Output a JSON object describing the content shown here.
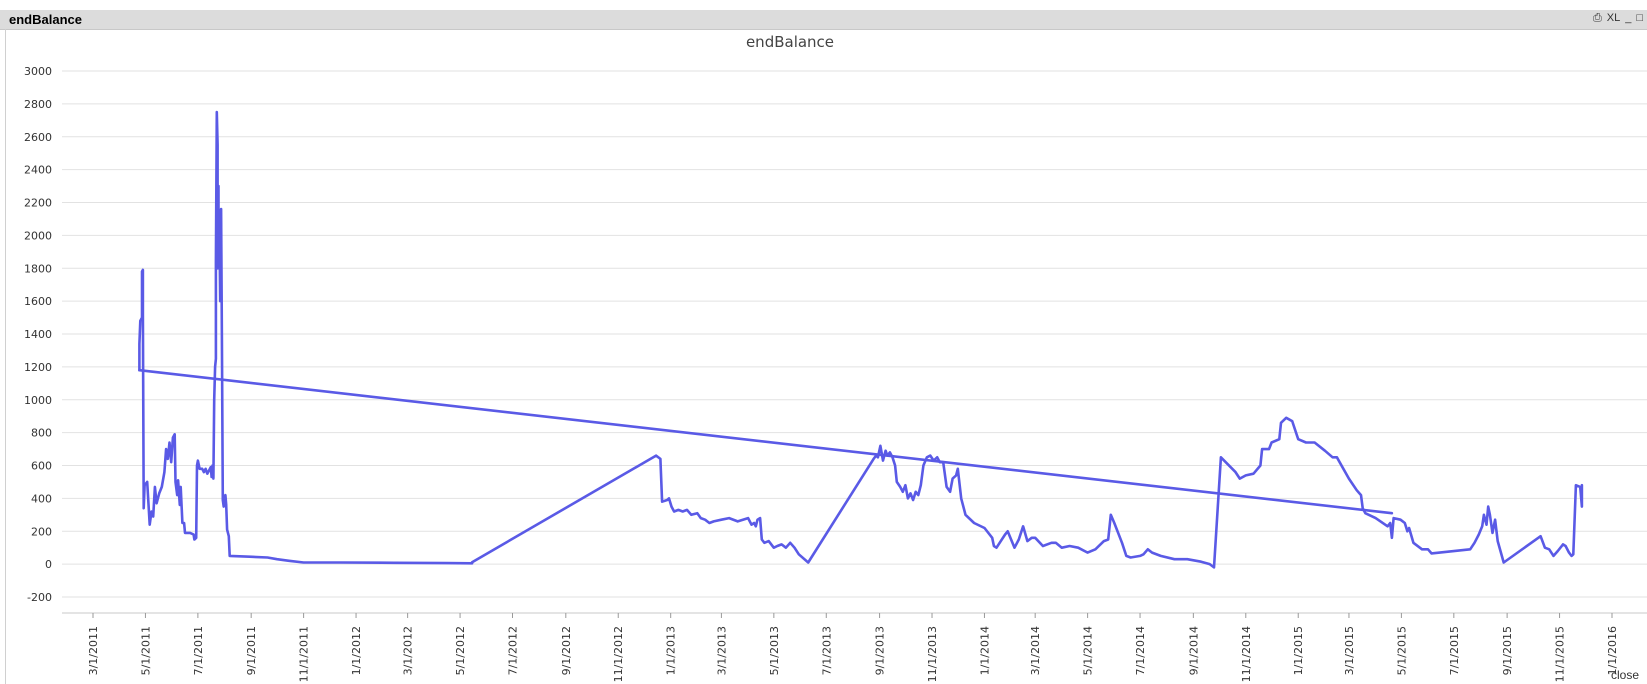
{
  "window": {
    "title": "endBalance",
    "controls": [
      "XL",
      "_",
      "□"
    ],
    "close_label": "close"
  },
  "chart_data": {
    "type": "line",
    "title": "endBalance",
    "xlabel": "",
    "ylabel": "",
    "ylim": [
      -200,
      3000
    ],
    "yticks": [
      -200,
      0,
      200,
      400,
      600,
      800,
      1000,
      1200,
      1400,
      1600,
      1800,
      2000,
      2200,
      2400,
      2600,
      2800,
      3000
    ],
    "xticks": [
      "3/1/2011",
      "5/1/2011",
      "7/1/2011",
      "9/1/2011",
      "11/1/2011",
      "1/1/2012",
      "3/1/2012",
      "5/1/2012",
      "7/1/2012",
      "9/1/2012",
      "11/1/2012",
      "1/1/2013",
      "3/1/2013",
      "5/1/2013",
      "7/1/2013",
      "9/1/2013",
      "11/1/2013",
      "1/1/2014",
      "3/1/2014",
      "5/1/2014",
      "7/1/2014",
      "9/1/2014",
      "11/1/2014",
      "1/1/2015",
      "3/1/2015",
      "5/1/2015",
      "7/1/2015",
      "9/1/2015",
      "11/1/2015",
      "1/1/2016"
    ],
    "grid": true,
    "color": "#5a5ae6",
    "series": [
      {
        "points": [
          [
            "4/24/2011",
            1180
          ],
          [
            "4/24/2011",
            1340
          ],
          [
            "4/25/2011",
            1480
          ],
          [
            "4/27/2011",
            1500
          ],
          [
            "4/27/2011",
            1780
          ],
          [
            "4/28/2011",
            1790
          ],
          [
            "4/28/2011",
            1520
          ],
          [
            "4/29/2011",
            340
          ],
          [
            "4/30/2011",
            480
          ],
          [
            "5/3/2011",
            500
          ],
          [
            "5/6/2011",
            240
          ],
          [
            "5/8/2011",
            320
          ],
          [
            "5/10/2011",
            290
          ],
          [
            "5/12/2011",
            470
          ],
          [
            "5/14/2011",
            370
          ],
          [
            "5/17/2011",
            430
          ],
          [
            "5/20/2011",
            470
          ],
          [
            "5/23/2011",
            560
          ],
          [
            "5/25/2011",
            700
          ],
          [
            "5/27/2011",
            640
          ],
          [
            "5/29/2011",
            740
          ],
          [
            "5/31/2011",
            620
          ],
          [
            "6/2/2011",
            770
          ],
          [
            "6/4/2011",
            790
          ],
          [
            "6/5/2011",
            500
          ],
          [
            "6/7/2011",
            420
          ],
          [
            "6/8/2011",
            510
          ],
          [
            "6/10/2011",
            360
          ],
          [
            "6/11/2011",
            470
          ],
          [
            "6/13/2011",
            250
          ],
          [
            "6/15/2011",
            250
          ],
          [
            "6/16/2011",
            190
          ],
          [
            "6/22/2011",
            190
          ],
          [
            "6/26/2011",
            180
          ],
          [
            "6/27/2011",
            150
          ],
          [
            "6/29/2011",
            160
          ],
          [
            "6/30/2011",
            600
          ],
          [
            "7/1/2011",
            630
          ],
          [
            "7/3/2011",
            580
          ],
          [
            "7/6/2011",
            580
          ],
          [
            "7/8/2011",
            560
          ],
          [
            "7/10/2011",
            580
          ],
          [
            "7/12/2011",
            550
          ],
          [
            "7/14/2011",
            570
          ],
          [
            "7/16/2011",
            590
          ],
          [
            "7/17/2011",
            530
          ],
          [
            "7/18/2011",
            600
          ],
          [
            "7/19/2011",
            520
          ],
          [
            "7/20/2011",
            1000
          ],
          [
            "7/21/2011",
            1200
          ],
          [
            "7/22/2011",
            1250
          ],
          [
            "7/22/2011",
            1840
          ],
          [
            "7/23/2011",
            2750
          ],
          [
            "7/24/2011",
            2550
          ],
          [
            "7/24/2011",
            1800
          ],
          [
            "7/25/2011",
            2300
          ],
          [
            "7/25/2011",
            1900
          ],
          [
            "7/26/2011",
            2050
          ],
          [
            "7/27/2011",
            1600
          ],
          [
            "7/28/2011",
            2160
          ],
          [
            "7/29/2011",
            1380
          ],
          [
            "7/30/2011",
            390
          ],
          [
            "7/31/2011",
            350
          ],
          [
            "8/2/2011",
            420
          ],
          [
            "8/3/2011",
            360
          ],
          [
            "8/4/2011",
            210
          ],
          [
            "8/6/2011",
            170
          ],
          [
            "8/7/2011",
            50
          ],
          [
            "8/30/2011",
            45
          ],
          [
            "9/20/2011",
            40
          ],
          [
            "10/1/2011",
            30
          ],
          [
            "10/15/2011",
            20
          ],
          [
            "11/1/2011",
            10
          ],
          [
            "12/15/2011",
            10
          ],
          [
            "2/15/2012",
            8
          ],
          [
            "4/15/2012",
            6
          ],
          [
            "5/15/2012",
            5
          ],
          [
            "5/15/2012",
            12
          ],
          [
            "12/15/2012",
            660
          ],
          [
            "12/20/2012",
            640
          ],
          [
            "12/22/2012",
            380
          ],
          [
            "12/28/2012",
            390
          ],
          [
            "12/30/2012",
            400
          ],
          [
            "1/2/2013",
            350
          ],
          [
            "1/5/2013",
            320
          ],
          [
            "1/10/2013",
            330
          ],
          [
            "1/15/2013",
            320
          ],
          [
            "1/20/2013",
            330
          ],
          [
            "1/25/2013",
            300
          ],
          [
            "2/1/2013",
            310
          ],
          [
            "2/5/2013",
            280
          ],
          [
            "2/10/2013",
            270
          ],
          [
            "2/15/2013",
            250
          ],
          [
            "2/20/2013",
            260
          ],
          [
            "3/1/2013",
            270
          ],
          [
            "3/10/2013",
            280
          ],
          [
            "3/20/2013",
            260
          ],
          [
            "4/1/2013",
            280
          ],
          [
            "4/5/2013",
            240
          ],
          [
            "4/8/2013",
            250
          ],
          [
            "4/10/2013",
            230
          ],
          [
            "4/12/2013",
            270
          ],
          [
            "4/15/2013",
            280
          ],
          [
            "4/17/2013",
            150
          ],
          [
            "4/20/2013",
            130
          ],
          [
            "4/25/2013",
            140
          ],
          [
            "5/1/2013",
            100
          ],
          [
            "5/5/2013",
            110
          ],
          [
            "5/10/2013",
            120
          ],
          [
            "5/15/2013",
            100
          ],
          [
            "5/20/2013",
            130
          ],
          [
            "5/25/2013",
            100
          ],
          [
            "5/30/2013",
            60
          ],
          [
            "6/10/2013",
            10
          ],
          [
            "8/25/2013",
            640
          ],
          [
            "8/28/2013",
            660
          ],
          [
            "8/30/2013",
            650
          ],
          [
            "9/2/2013",
            720
          ],
          [
            "9/5/2013",
            630
          ],
          [
            "9/8/2013",
            690
          ],
          [
            "9/10/2013",
            660
          ],
          [
            "9/13/2013",
            680
          ],
          [
            "9/16/2013",
            650
          ],
          [
            "9/19/2013",
            600
          ],
          [
            "9/21/2013",
            500
          ],
          [
            "9/25/2013",
            470
          ],
          [
            "9/28/2013",
            440
          ],
          [
            "10/1/2013",
            480
          ],
          [
            "10/4/2013",
            400
          ],
          [
            "10/7/2013",
            430
          ],
          [
            "10/10/2013",
            390
          ],
          [
            "10/13/2013",
            440
          ],
          [
            "10/16/2013",
            420
          ],
          [
            "10/19/2013",
            480
          ],
          [
            "10/22/2013",
            600
          ],
          [
            "10/26/2013",
            650
          ],
          [
            "10/30/2013",
            660
          ],
          [
            "11/3/2013",
            630
          ],
          [
            "11/7/2013",
            650
          ],
          [
            "11/10/2013",
            620
          ],
          [
            "11/14/2013",
            620
          ],
          [
            "11/18/2013",
            470
          ],
          [
            "11/22/2013",
            440
          ],
          [
            "11/25/2013",
            520
          ],
          [
            "11/29/2013",
            540
          ],
          [
            "12/1/2013",
            580
          ],
          [
            "12/5/2013",
            400
          ],
          [
            "12/10/2013",
            300
          ],
          [
            "12/20/2013",
            250
          ],
          [
            "1/1/2014",
            220
          ],
          [
            "1/10/2014",
            160
          ],
          [
            "1/12/2014",
            110
          ],
          [
            "1/15/2014",
            100
          ],
          [
            "1/20/2014",
            140
          ],
          [
            "1/25/2014",
            180
          ],
          [
            "1/28/2014",
            200
          ],
          [
            "2/1/2014",
            150
          ],
          [
            "2/5/2014",
            100
          ],
          [
            "2/10/2014",
            150
          ],
          [
            "2/15/2014",
            230
          ],
          [
            "2/20/2014",
            140
          ],
          [
            "2/25/2014",
            160
          ],
          [
            "3/1/2014",
            160
          ],
          [
            "3/10/2014",
            110
          ],
          [
            "3/20/2014",
            130
          ],
          [
            "3/25/2014",
            130
          ],
          [
            "4/1/2014",
            100
          ],
          [
            "4/10/2014",
            110
          ],
          [
            "4/20/2014",
            100
          ],
          [
            "5/1/2014",
            70
          ],
          [
            "5/10/2014",
            90
          ],
          [
            "5/20/2014",
            140
          ],
          [
            "5/25/2014",
            150
          ],
          [
            "5/28/2014",
            300
          ],
          [
            "6/1/2014",
            250
          ],
          [
            "6/10/2014",
            130
          ],
          [
            "6/15/2014",
            50
          ],
          [
            "6/20/2014",
            40
          ],
          [
            "7/1/2014",
            50
          ],
          [
            "7/5/2014",
            60
          ],
          [
            "7/10/2014",
            90
          ],
          [
            "7/15/2014",
            70
          ],
          [
            "7/25/2014",
            50
          ],
          [
            "8/10/2014",
            30
          ],
          [
            "8/25/2014",
            30
          ],
          [
            "9/10/2014",
            15
          ],
          [
            "9/20/2014",
            0
          ],
          [
            "9/25/2014",
            -20
          ],
          [
            "10/3/2014",
            650
          ],
          [
            "10/20/2014",
            560
          ],
          [
            "10/25/2014",
            520
          ],
          [
            "11/1/2014",
            540
          ],
          [
            "11/10/2014",
            550
          ],
          [
            "11/18/2014",
            600
          ],
          [
            "11/20/2014",
            700
          ],
          [
            "11/28/2014",
            700
          ],
          [
            "12/1/2014",
            740
          ],
          [
            "12/10/2014",
            760
          ],
          [
            "12/12/2014",
            860
          ],
          [
            "12/18/2014",
            890
          ],
          [
            "12/25/2014",
            870
          ],
          [
            "1/1/2015",
            760
          ],
          [
            "1/10/2015",
            740
          ],
          [
            "1/20/2015",
            740
          ],
          [
            "2/1/2015",
            690
          ],
          [
            "2/10/2015",
            650
          ],
          [
            "2/15/2015",
            650
          ],
          [
            "3/1/2015",
            520
          ],
          [
            "3/10/2015",
            450
          ],
          [
            "3/15/2015",
            420
          ],
          [
            "3/17/2015",
            340
          ],
          [
            "3/20/2015",
            310
          ],
          [
            "4/1/2015",
            280
          ],
          [
            "4/15/2015",
            230
          ],
          [
            "4/18/2015",
            250
          ],
          [
            "4/20/2015",
            160
          ],
          [
            "4/22/2015",
            280
          ],
          [
            "4/30/2015",
            270
          ],
          [
            "5/5/2015",
            250
          ],
          [
            "5/8/2015",
            200
          ],
          [
            "5/10/2015",
            220
          ],
          [
            "5/15/2015",
            130
          ],
          [
            "5/25/2015",
            90
          ],
          [
            "6/1/2015",
            90
          ],
          [
            "6/5/2015",
            65
          ],
          [
            "7/20/2015",
            90
          ],
          [
            "7/25/2015",
            130
          ],
          [
            "7/30/2015",
            180
          ],
          [
            "8/3/2015",
            230
          ],
          [
            "8/5/2015",
            300
          ],
          [
            "8/8/2015",
            240
          ],
          [
            "8/10/2015",
            350
          ],
          [
            "8/12/2015",
            300
          ],
          [
            "8/15/2015",
            190
          ],
          [
            "8/18/2015",
            270
          ],
          [
            "8/21/2015",
            140
          ],
          [
            "8/28/2015",
            10
          ],
          [
            "10/10/2015",
            170
          ],
          [
            "10/15/2015",
            100
          ],
          [
            "10/20/2015",
            90
          ],
          [
            "10/25/2015",
            50
          ],
          [
            "10/30/2015",
            80
          ],
          [
            "11/5/2015",
            120
          ],
          [
            "11/8/2015",
            110
          ],
          [
            "11/12/2015",
            70
          ],
          [
            "11/15/2015",
            50
          ],
          [
            "11/17/2015",
            60
          ],
          [
            "11/20/2015",
            480
          ],
          [
            "11/25/2015",
            470
          ],
          [
            "11/27/2015",
            350
          ],
          [
            "11/27/2015",
            480
          ]
        ]
      },
      {
        "points": [
          [
            "4/24/2011",
            1180
          ],
          [
            "4/20/2015",
            310
          ]
        ]
      }
    ]
  }
}
